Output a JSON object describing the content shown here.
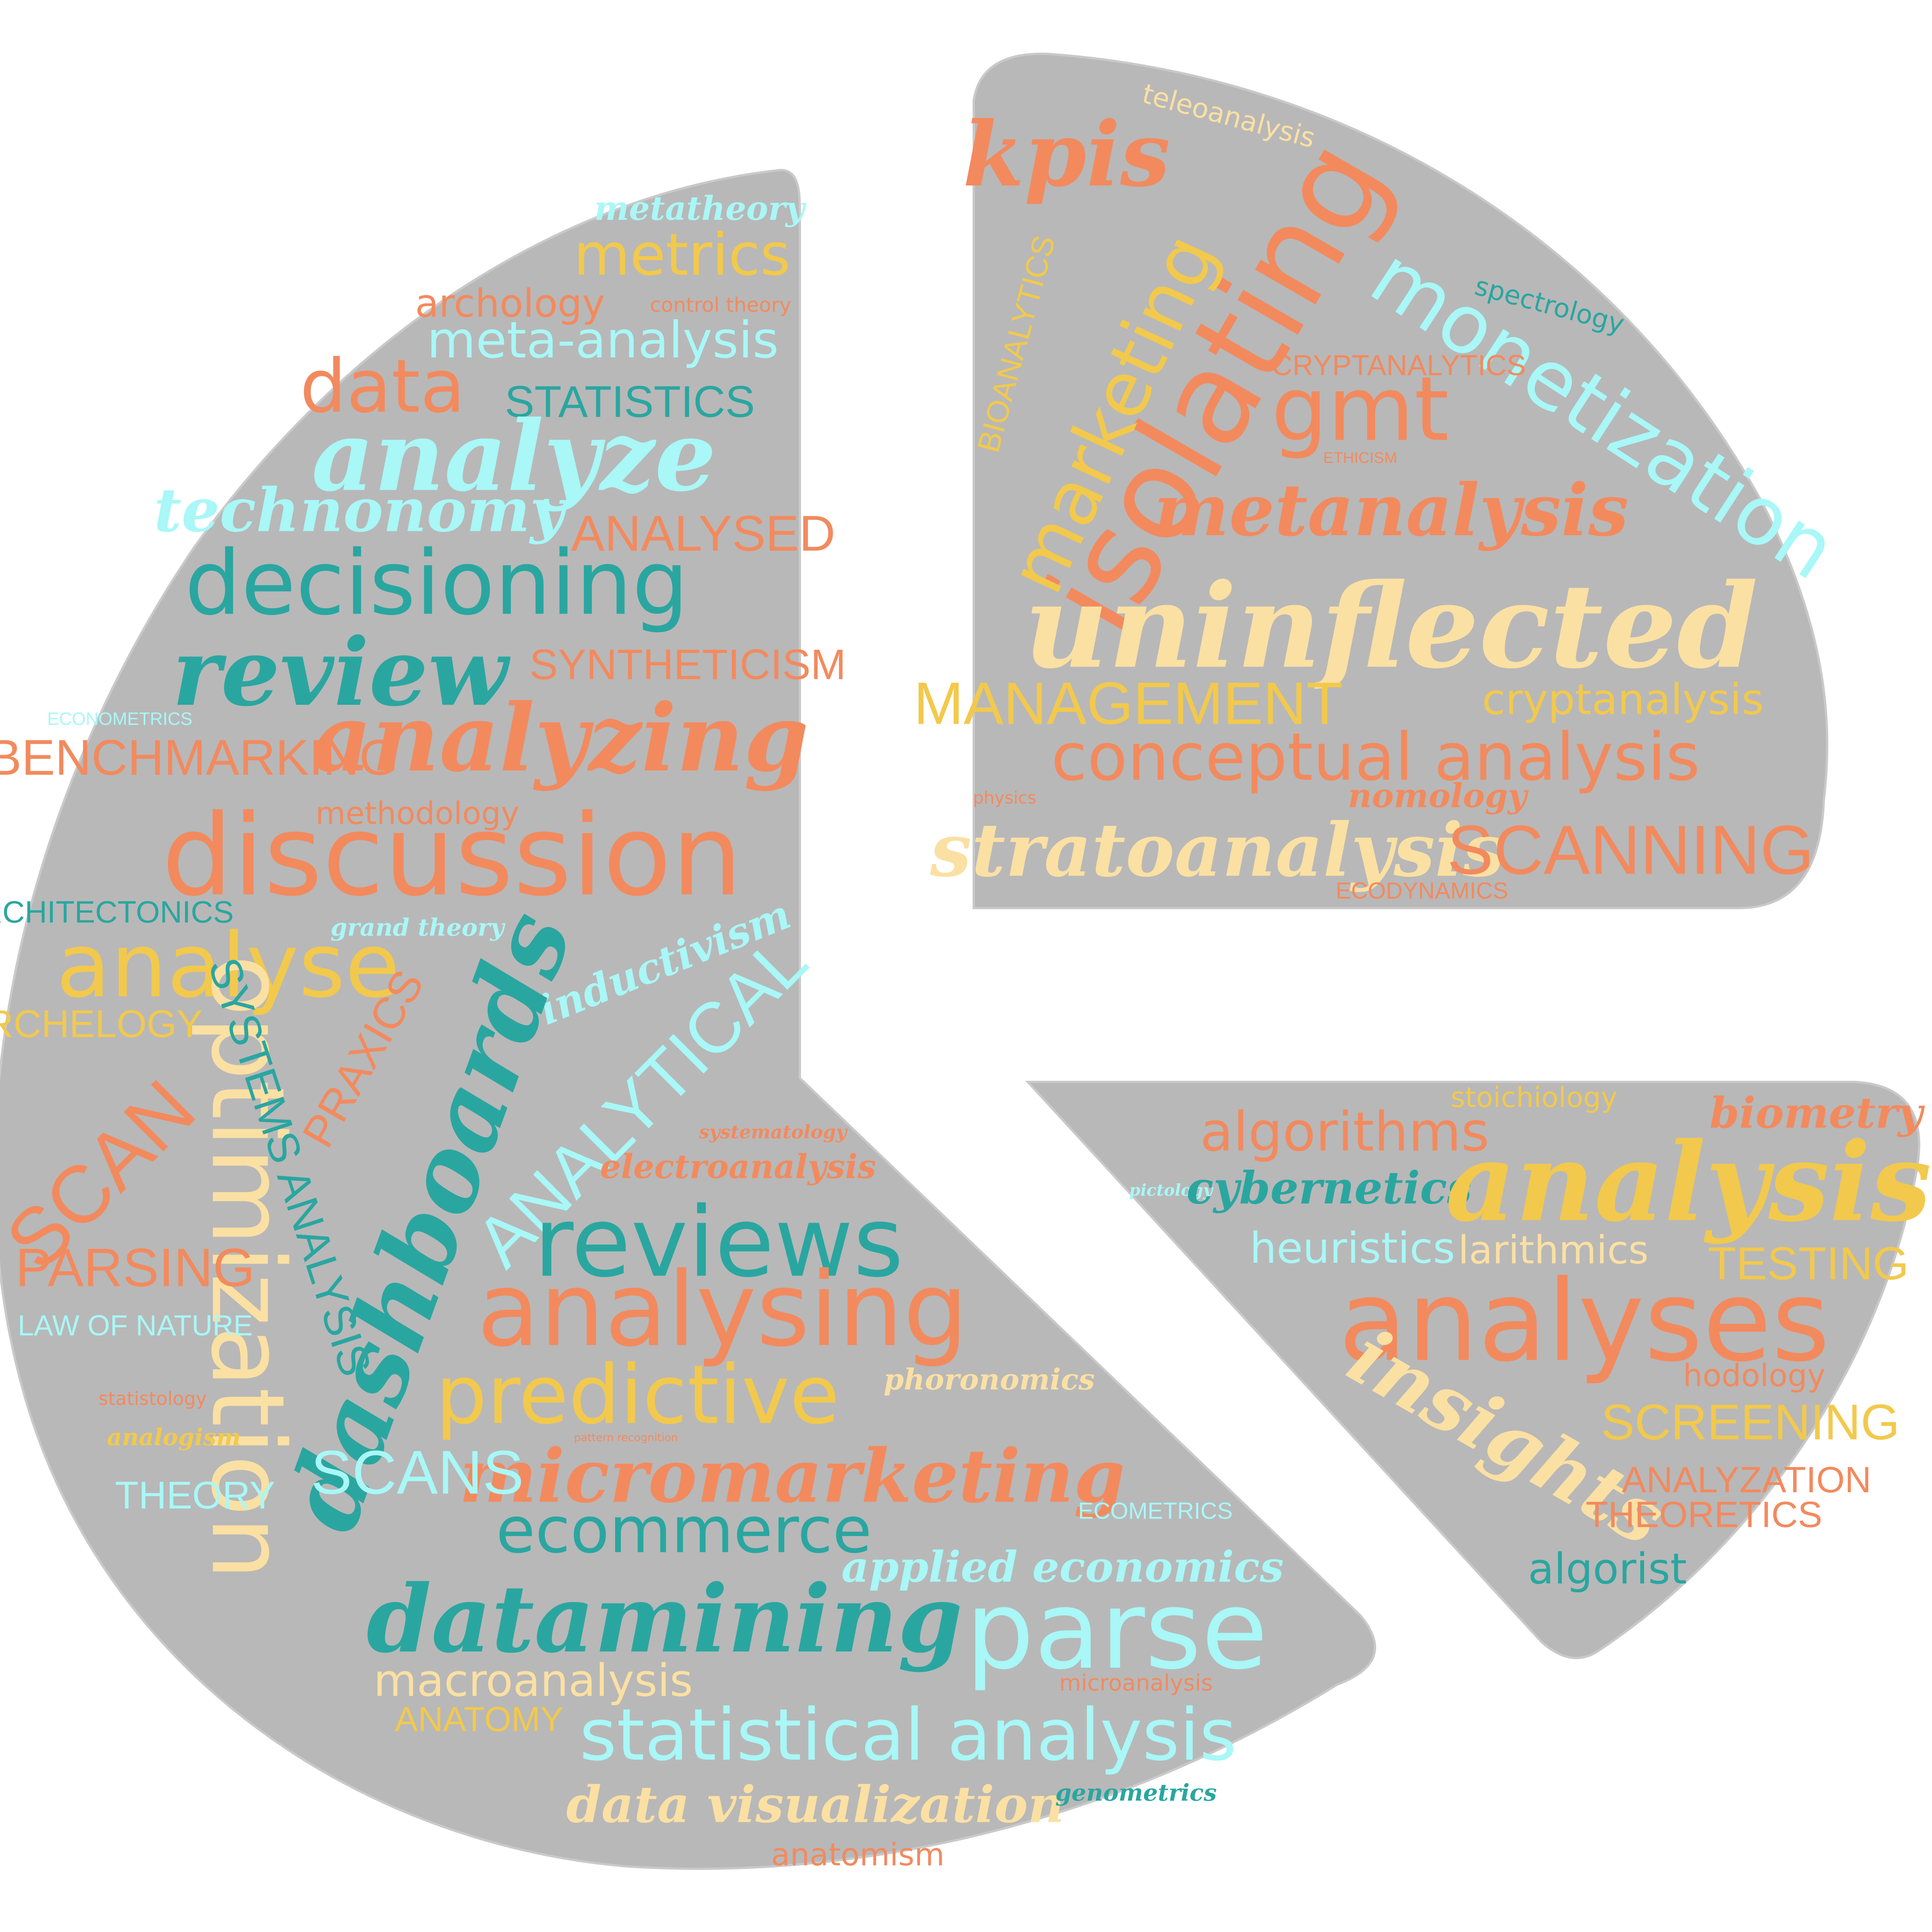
{
  "palette": {
    "background": "#ffffff",
    "shape": "#b8b8b8",
    "orange": "#f28a5e",
    "teal": "#2aa6a0",
    "cyan": "#a9f7f7",
    "yellow": "#f2c94c",
    "cream": "#fbe0a3"
  },
  "pieces": [
    {
      "name": "large-wedge",
      "fill": "#b8b8b8"
    },
    {
      "name": "top-right-wedge",
      "fill": "#b8b8b8"
    },
    {
      "name": "bottom-right-wedge",
      "fill": "#b8b8b8"
    }
  ],
  "words": {
    "metatheory": "metatheory",
    "metrics": "metrics",
    "archology": "archology",
    "control_theory": "control theory",
    "meta_analysis": "meta-analysis",
    "data": "data",
    "statistics": "STATISTICS",
    "analyze": "analyze",
    "technonomy": "technonomy",
    "analysed": "ANALYSED",
    "decisioning": "decisioning",
    "review": "review",
    "syntheticism": "SYNTHETICISM",
    "econometrics": "ECONOMETRICS",
    "benchmarking": "BENCHMARKING",
    "analyzing": "analyzing",
    "methodology": "methodology",
    "discussion": "discussion",
    "architectonics": "ARCHITECTONICS",
    "grand_theory": "grand theory",
    "inductivism": "inductivism",
    "analyse": "analyse",
    "archelogy": "ARCHELOGY",
    "optimization": "optimization",
    "systems_analysis": "SYSTEMS ANALYSIS",
    "praxics": "PRAXICS",
    "dashboards": "dashboards",
    "analytical": "ANALYTICAL",
    "scan": "SCAN",
    "systematology": "systematology",
    "electroanalysis": "electroanalysis",
    "reviews": "reviews",
    "parsing": "PARSING",
    "analysing": "analysing",
    "law_of_nature": "LAW OF NATURE",
    "predictive": "predictive",
    "phoronomics": "phoronomics",
    "statistology": "statistology",
    "analogism": "analogism",
    "pattern_recognition": "pattern recognition",
    "micromarketing": "micromarketing",
    "scans": "SCANS",
    "theory": "THEORY",
    "ecometrics": "ECOMETRICS",
    "ecommerce": "ecommerce",
    "applied_economics": "applied economics",
    "datamining": "datamining",
    "parse": "parse",
    "macroanalysis": "macroanalysis",
    "microanalysis": "microanalysis",
    "anatomy": "ANATOMY",
    "statistical_analysis": "statistical analysis",
    "data_visualization": "data visualization",
    "genometrics": "genometrics",
    "anatomism": "anatomism",
    "teleoanalysis": "teleoanalysis",
    "kpis": "kpis",
    "isolating": "isolating",
    "marketing": "marketing",
    "spectrology": "spectrology",
    "monetization": "monetization",
    "bioanalytics": "BIOANALYTICS",
    "cryptanalytics": "CRYPTANALYTICS",
    "gmt": "gmt",
    "ethicism": "ETHICISM",
    "metanalysis": "metanalysis",
    "uninflected": "uninflected",
    "management": "MANAGEMENT",
    "cryptanalysis": "cryptanalysis",
    "conceptual_analysis": "conceptual analysis",
    "physics": "physics",
    "nomology": "nomology",
    "stratoanalysis": "stratoanalysis",
    "scanning": "SCANNING",
    "ecodynamics": "ECODYNAMICS",
    "stoichiology": "stoichiology",
    "biometry": "biometry",
    "algorithms": "algorithms",
    "pictology": "pictology",
    "cybernetics": "cybernetics",
    "analysis": "analysis",
    "heuristics": "heuristics",
    "larithmics": "larithmics",
    "testing": "TESTING",
    "analyses": "analyses",
    "hodology": "hodology",
    "insights": "insights",
    "screening": "SCREENING",
    "analyzation": "ANALYZATION",
    "theoretics": "THEORETICS",
    "algorist": "algorist"
  }
}
